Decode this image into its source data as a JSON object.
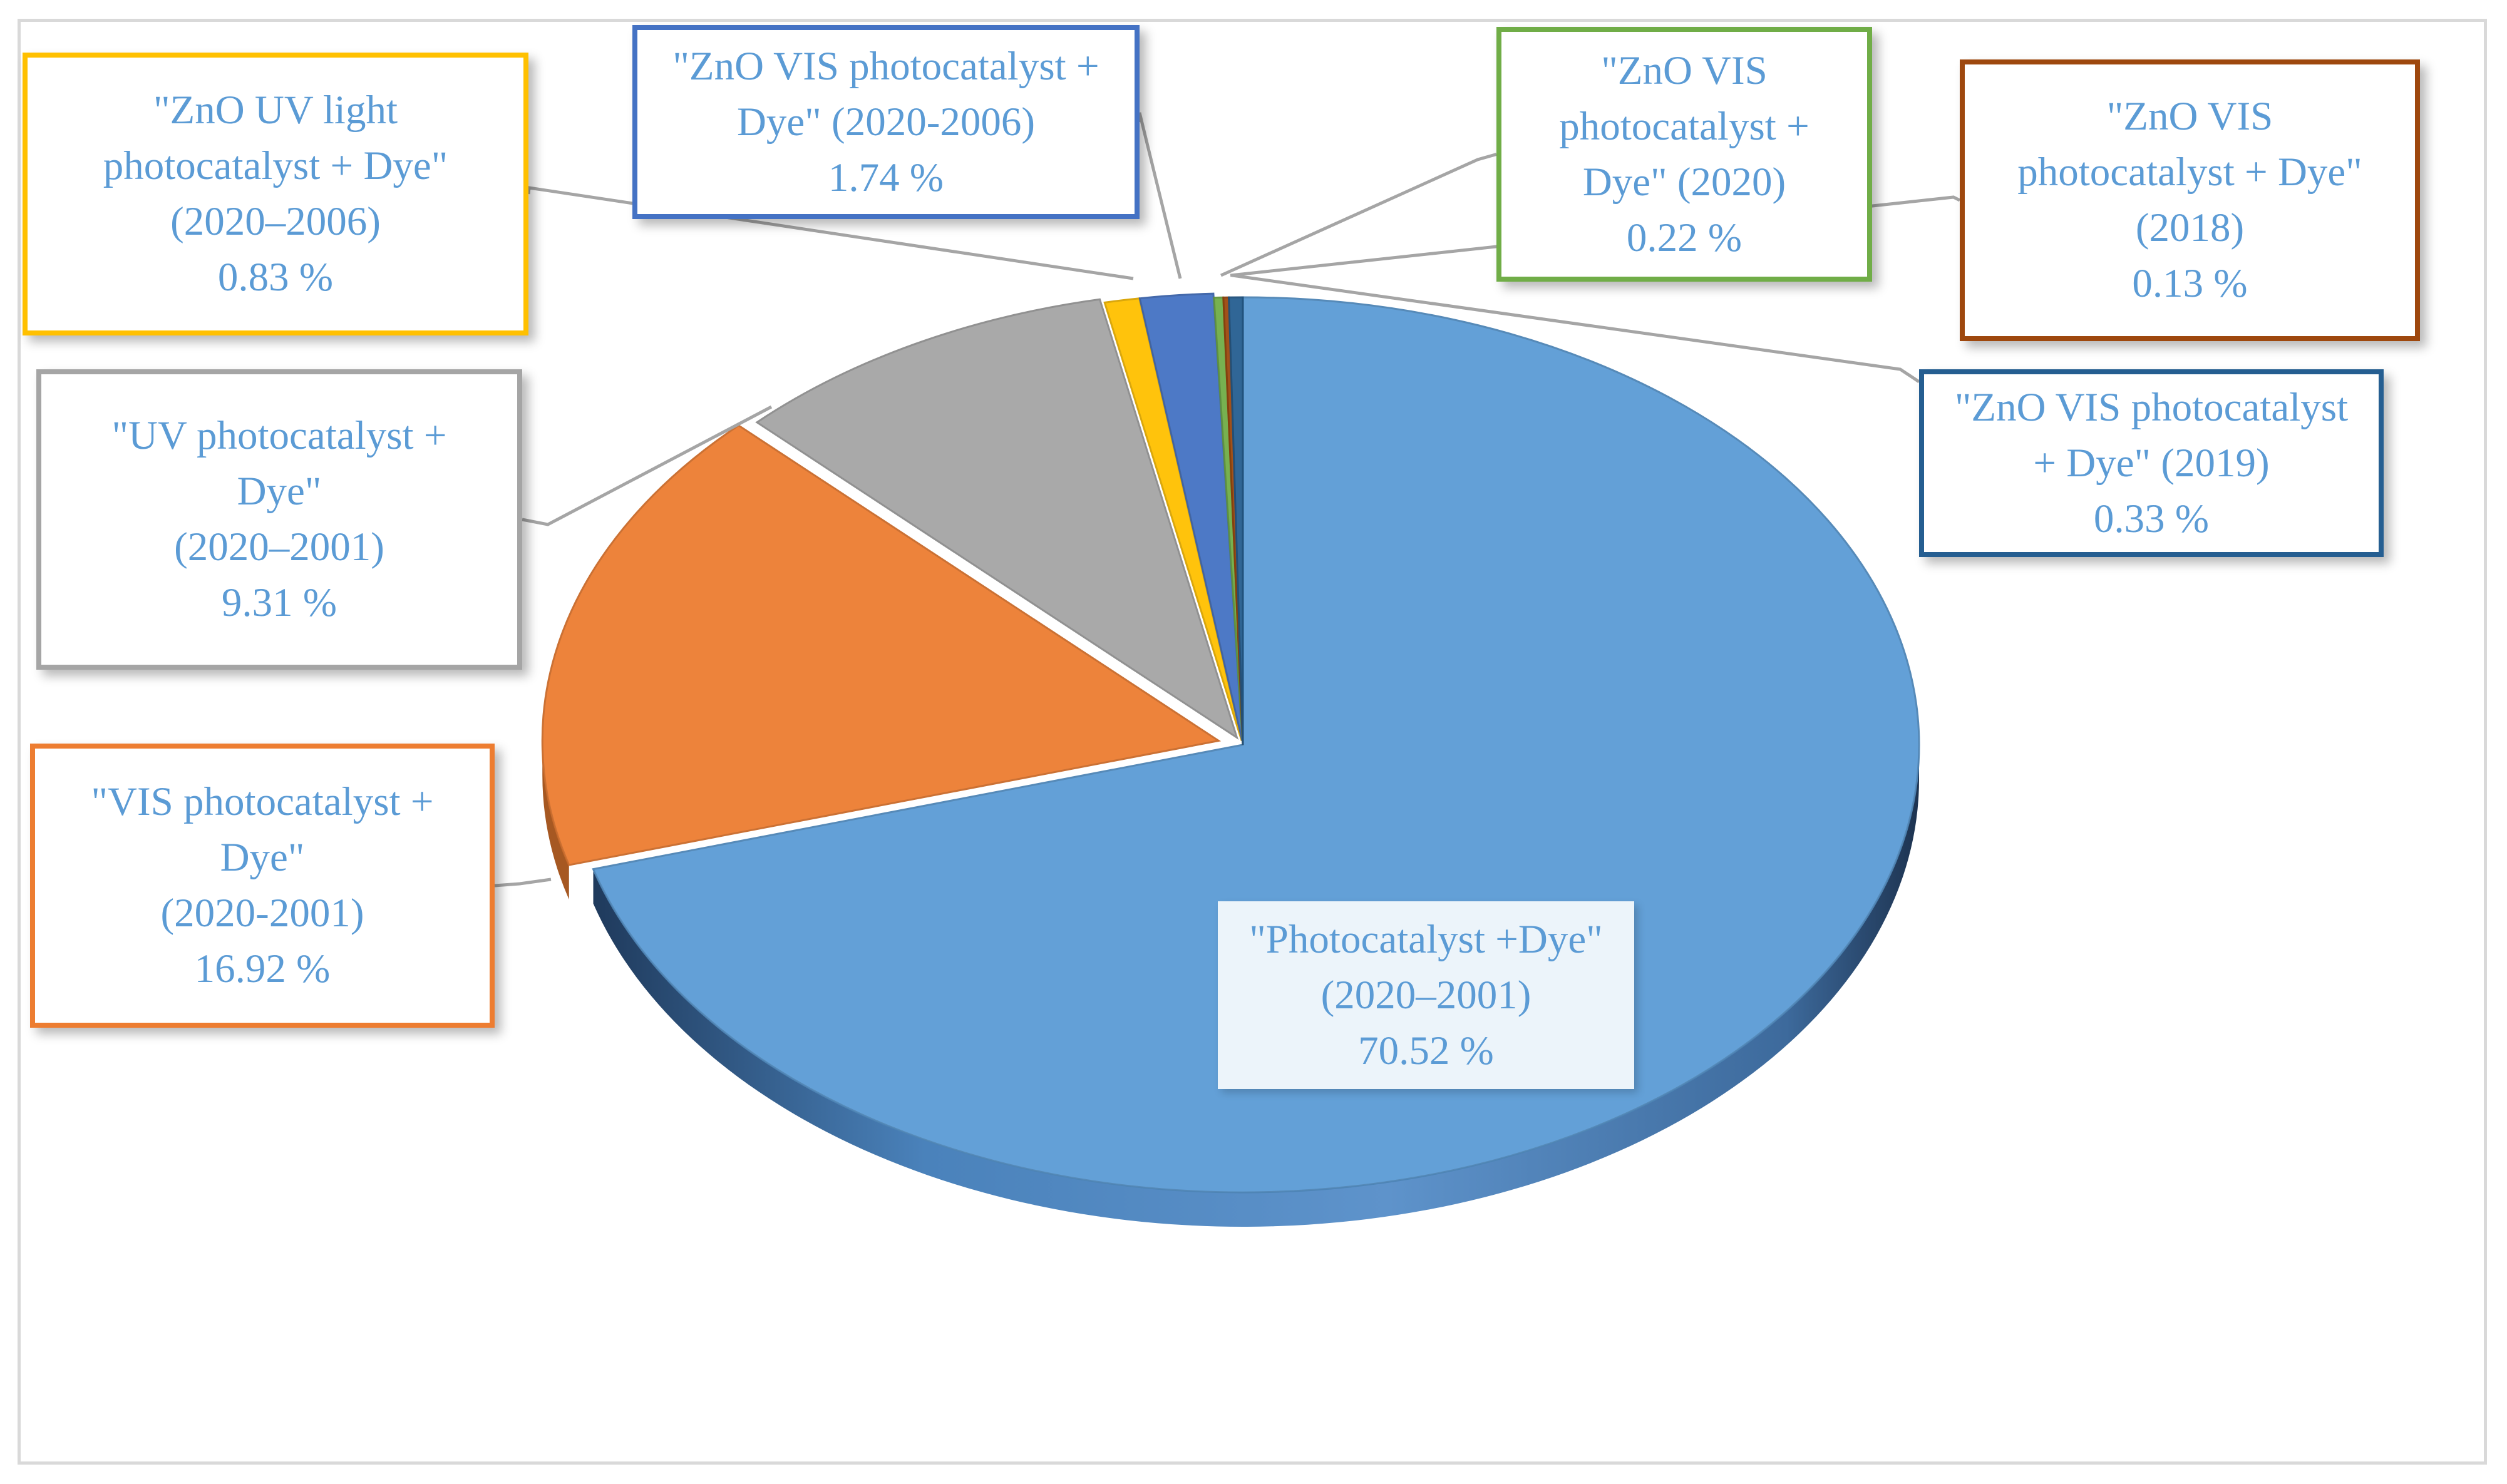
{
  "chart_data": {
    "type": "pie",
    "style": "3d-exploded",
    "title": "",
    "slices": [
      {
        "lines": [
          "\"Photocatalyst +Dye\"",
          "(2020–2001)",
          "70.52 %"
        ],
        "value": 70.52,
        "color": "#5b9bd5",
        "border": "#ffffff"
      },
      {
        "lines": [
          "\"VIS photocatalyst +",
          "Dye\"",
          "(2020-2001)",
          "16.92 %"
        ],
        "value": 16.92,
        "color": "#ed7d31",
        "border": "#ed7d31"
      },
      {
        "lines": [
          "\"UV photocatalyst +",
          "Dye\"",
          "(2020–2001)",
          "9.31 %"
        ],
        "value": 9.31,
        "color": "#a5a5a5",
        "border": "#a5a5a5"
      },
      {
        "lines": [
          "\"ZnO UV light",
          "photocatalyst + Dye\"",
          "(2020–2006)",
          "0.83 %"
        ],
        "value": 0.83,
        "color": "#ffc000",
        "border": "#ffc000"
      },
      {
        "lines": [
          "\"ZnO VIS photocatalyst +",
          "Dye\" (2020-2006)",
          "1.74 %"
        ],
        "value": 1.74,
        "color": "#4472c4",
        "border": "#4472c4"
      },
      {
        "lines": [
          "\"ZnO VIS",
          "photocatalyst +",
          "Dye\" (2020)",
          "0.22 %"
        ],
        "value": 0.22,
        "color": "#70ad47",
        "border": "#70ad47"
      },
      {
        "lines": [
          "\"ZnO VIS",
          "photocatalyst + Dye\"",
          "(2018)",
          "0.13 %"
        ],
        "value": 0.13,
        "color": "#9e480e",
        "border": "#9e480e"
      },
      {
        "lines": [
          "\"ZnO VIS photocatalyst",
          "+ Dye\" (2019)",
          "0.33 %"
        ],
        "value": 0.33,
        "color": "#255e91",
        "border": "#255e91"
      }
    ]
  },
  "colors": {
    "label_text": "#5b9bd5",
    "leader_line": "#a5a5a5",
    "frame": "#d9d9d9"
  }
}
